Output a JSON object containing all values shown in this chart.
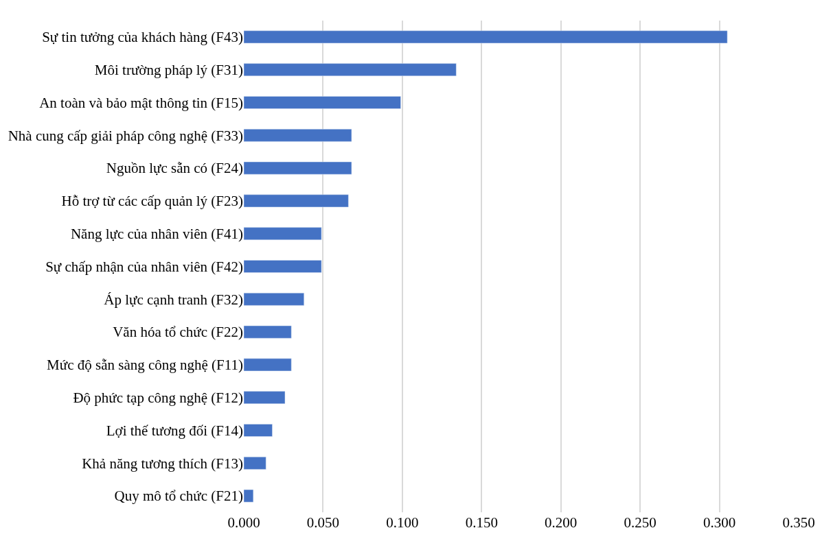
{
  "chart_data": {
    "type": "bar",
    "orientation": "horizontal",
    "categories": [
      "Sự tin tưởng của khách hàng (F43)",
      "Môi trường pháp lý (F31)",
      "An toàn và bảo mật thông tin (F15)",
      "Nhà cung cấp giải pháp công nghệ (F33)",
      "Nguồn lực sẵn có (F24)",
      "Hỗ trợ từ các cấp quản lý (F23)",
      "Năng lực của nhân viên (F41)",
      "Sự chấp nhận của nhân viên (F42)",
      "Áp lực cạnh tranh (F32)",
      "Văn hóa tổ chức (F22)",
      "Mức độ sẵn sàng công nghệ (F11)",
      "Độ phức tạp công nghệ (F12)",
      "Lợi thế tương đối (F14)",
      "Khả năng tương thích (F13)",
      "Quy mô tổ chức (F21)"
    ],
    "values": [
      0.305,
      0.134,
      0.099,
      0.068,
      0.068,
      0.066,
      0.049,
      0.049,
      0.038,
      0.03,
      0.03,
      0.026,
      0.018,
      0.014,
      0.006
    ],
    "color": "#4472c4",
    "xlim": [
      0,
      0.35
    ],
    "xticks": [
      {
        "value": 0,
        "label": "0.000"
      },
      {
        "value": 0.05,
        "label": "0.050"
      },
      {
        "value": 0.1,
        "label": "0.100"
      },
      {
        "value": 0.15,
        "label": "0.150"
      },
      {
        "value": 0.2,
        "label": "0.200"
      },
      {
        "value": 0.25,
        "label": "0.250"
      },
      {
        "value": 0.3,
        "label": "0.300"
      },
      {
        "value": 0.35,
        "label": "0.350"
      }
    ],
    "grid": "x"
  }
}
